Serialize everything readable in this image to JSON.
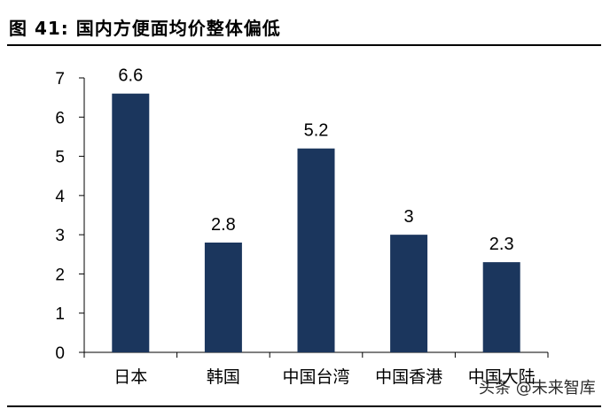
{
  "header": {
    "title": "图 41:  国内方便面均价整体偏低"
  },
  "watermark": "头条 @未来智库",
  "colors": {
    "bar": "#1b365d",
    "axis": "#000000",
    "text": "#000000"
  },
  "chart_data": {
    "type": "bar",
    "categories": [
      "日本",
      "韩国",
      "中国台湾",
      "中国香港",
      "中国大陆"
    ],
    "values": [
      6.6,
      2.8,
      5.2,
      3,
      2.3
    ],
    "value_labels": [
      "6.6",
      "2.8",
      "5.2",
      "3",
      "2.3"
    ],
    "y_ticks": [
      "0",
      "1",
      "2",
      "3",
      "4",
      "5",
      "6",
      "7"
    ],
    "ylim": [
      0,
      7
    ],
    "grid": false,
    "legend": "none"
  }
}
